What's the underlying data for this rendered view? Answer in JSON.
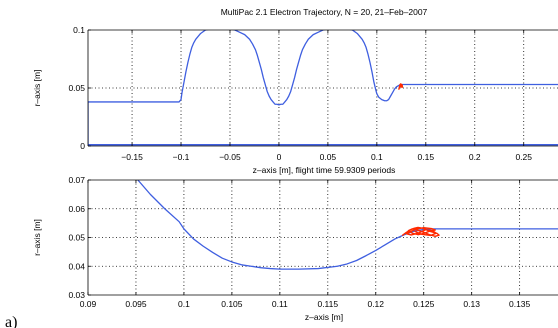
{
  "figure": {
    "title": "MultiPac 2.1      Electron Trajectory,   N = 20,    21–Feb–2007",
    "panel_letter": "a)",
    "colors": {
      "geometry": "#3f5fe0",
      "trajectory": "#ff2a00",
      "axes": "#000000",
      "grid": "#000000"
    }
  },
  "chart_data": [
    {
      "type": "line",
      "xlabel": "z–axis [m],  flight time 59.9309 periods",
      "ylabel": "r–axis [m]",
      "xlim": [
        -0.195,
        0.285
      ],
      "ylim": [
        0,
        0.1
      ],
      "grid": true,
      "xticks": [
        -0.15,
        -0.1,
        -0.05,
        0,
        0.05,
        0.1,
        0.15,
        0.2,
        0.25
      ],
      "xtick_labels": [
        "−0.15",
        "−0.1",
        "−0.05",
        "0",
        "0.05",
        "0.1",
        "0.15",
        "0.2",
        "0.25"
      ],
      "yticks": [
        0,
        0.05,
        0.1
      ],
      "ytick_labels": [
        "0",
        "0.05",
        "0.1"
      ],
      "series": [
        {
          "role": "geometry",
          "x": [
            -0.195,
            -0.195,
            -0.102,
            -0.1,
            -0.099,
            -0.097,
            -0.095,
            -0.093,
            -0.091,
            -0.089,
            -0.087,
            -0.085,
            -0.08,
            -0.075,
            -0.07,
            -0.065,
            -0.06,
            -0.055,
            -0.05,
            -0.045,
            -0.04,
            -0.035,
            -0.03,
            -0.027,
            -0.024,
            -0.022,
            -0.02,
            -0.018,
            -0.016,
            -0.014,
            -0.012,
            -0.01,
            -0.008,
            -0.006,
            -0.004,
            -0.002,
            0.0,
            0.002,
            0.004,
            0.006,
            0.008,
            0.01,
            0.012,
            0.014,
            0.016,
            0.018,
            0.02,
            0.022,
            0.024,
            0.027,
            0.03,
            0.035,
            0.04,
            0.045,
            0.05,
            0.055,
            0.06,
            0.065,
            0.07,
            0.075,
            0.08,
            0.085,
            0.087,
            0.089,
            0.091,
            0.093,
            0.095,
            0.097,
            0.099,
            0.1,
            0.102,
            0.105,
            0.108,
            0.11,
            0.112,
            0.114,
            0.116,
            0.118,
            0.12,
            0.122,
            0.124,
            0.126,
            0.285
          ],
          "y": [
            0.001,
            0.038,
            0.038,
            0.04,
            0.046,
            0.055,
            0.064,
            0.072,
            0.079,
            0.085,
            0.089,
            0.092,
            0.097,
            0.1,
            0.101,
            0.102,
            0.102,
            0.102,
            0.101,
            0.1,
            0.098,
            0.096,
            0.092,
            0.088,
            0.083,
            0.078,
            0.072,
            0.066,
            0.059,
            0.053,
            0.047,
            0.043,
            0.04,
            0.038,
            0.036,
            0.036,
            0.0355,
            0.036,
            0.036,
            0.038,
            0.04,
            0.043,
            0.047,
            0.053,
            0.059,
            0.066,
            0.072,
            0.078,
            0.083,
            0.088,
            0.092,
            0.096,
            0.098,
            0.1,
            0.101,
            0.102,
            0.102,
            0.102,
            0.101,
            0.1,
            0.097,
            0.092,
            0.089,
            0.085,
            0.079,
            0.072,
            0.064,
            0.055,
            0.048,
            0.045,
            0.042,
            0.04,
            0.039,
            0.039,
            0.04,
            0.043,
            0.046,
            0.049,
            0.051,
            0.052,
            0.053,
            0.053,
            0.053
          ]
        },
        {
          "role": "axis-line",
          "x": [
            -0.195,
            0.285
          ],
          "y": [
            0.001,
            0.001
          ]
        },
        {
          "role": "trajectory",
          "x": [
            0.1225,
            0.1232,
            0.1238,
            0.1244,
            0.125,
            0.1256,
            0.1262,
            0.1257,
            0.1249,
            0.1242,
            0.1236,
            0.1241,
            0.1248,
            0.1255,
            0.126
          ],
          "y": [
            0.049,
            0.0515,
            0.053,
            0.0535,
            0.053,
            0.0525,
            0.051,
            0.0505,
            0.052,
            0.0535,
            0.0525,
            0.051,
            0.0515,
            0.053,
            0.052
          ]
        }
      ]
    },
    {
      "type": "line",
      "xlabel": "z–axis [m]",
      "ylabel": "r–axis [m]",
      "xlim": [
        0.09,
        0.139
      ],
      "ylim": [
        0.03,
        0.07
      ],
      "grid": true,
      "xticks": [
        0.09,
        0.095,
        0.1,
        0.105,
        0.11,
        0.115,
        0.12,
        0.125,
        0.13,
        0.135
      ],
      "xtick_labels": [
        "0.09",
        "0.095",
        "0.1",
        "0.105",
        "0.11",
        "0.115",
        "0.12",
        "0.125",
        "0.13",
        "0.135"
      ],
      "yticks": [
        0.03,
        0.04,
        0.05,
        0.06,
        0.07
      ],
      "ytick_labels": [
        "0.03",
        "0.04",
        "0.05",
        "0.06",
        "0.07"
      ],
      "series": [
        {
          "role": "geometry",
          "x": [
            0.0952,
            0.0965,
            0.098,
            0.0995,
            0.1,
            0.101,
            0.102,
            0.103,
            0.104,
            0.105,
            0.106,
            0.107,
            0.108,
            0.109,
            0.11,
            0.112,
            0.114,
            0.116,
            0.117,
            0.118,
            0.119,
            0.12,
            0.121,
            0.122,
            0.123,
            0.124,
            0.125,
            0.126,
            0.139
          ],
          "y": [
            0.07,
            0.065,
            0.06,
            0.0555,
            0.053,
            0.0495,
            0.047,
            0.0448,
            0.0428,
            0.0415,
            0.0405,
            0.04,
            0.0395,
            0.0392,
            0.039,
            0.039,
            0.0392,
            0.04,
            0.0408,
            0.042,
            0.0437,
            0.0455,
            0.0475,
            0.0495,
            0.051,
            0.0522,
            0.0528,
            0.053,
            0.053
          ]
        },
        {
          "role": "trajectory",
          "x": [
            0.1228,
            0.1232,
            0.1236,
            0.124,
            0.1244,
            0.1248,
            0.1252,
            0.1256,
            0.126,
            0.1264,
            0.1266,
            0.1262,
            0.1256,
            0.125,
            0.1244,
            0.1238,
            0.1234,
            0.1238,
            0.1244,
            0.125,
            0.1256,
            0.1262,
            0.1258,
            0.125,
            0.1242,
            0.1236,
            0.1232,
            0.1237,
            0.1245,
            0.1252,
            0.1259,
            0.1263,
            0.1257,
            0.1248,
            0.1241
          ],
          "y": [
            0.0508,
            0.0518,
            0.0526,
            0.0532,
            0.0535,
            0.0533,
            0.0528,
            0.0522,
            0.0518,
            0.0514,
            0.0508,
            0.0504,
            0.051,
            0.0518,
            0.0525,
            0.053,
            0.0524,
            0.0515,
            0.051,
            0.0514,
            0.0522,
            0.0526,
            0.0531,
            0.0534,
            0.0529,
            0.052,
            0.0513,
            0.0509,
            0.0516,
            0.0527,
            0.0524,
            0.0515,
            0.0507,
            0.0511,
            0.0521
          ]
        }
      ]
    }
  ]
}
